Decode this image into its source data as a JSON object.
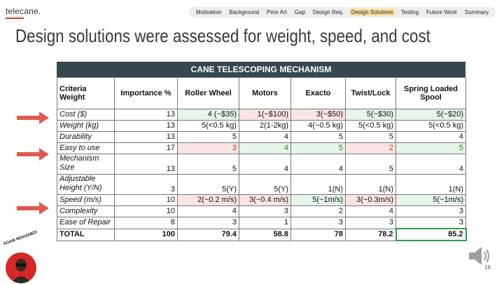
{
  "brand": "telecane.",
  "nav": [
    "Motivation",
    "Background",
    "Prior Art",
    "Gap",
    "Design Req.",
    "Design Solutions",
    "Testing",
    "Future Work",
    "Summary"
  ],
  "nav_active": 5,
  "title": "Design solutions were assessed for weight, speed, and cost",
  "table": {
    "title": "CANE TELESCOPING MECHANISM",
    "headers": [
      "Criteria Weight",
      "Importance %",
      "Roller Wheel",
      "Motors",
      "Exacto",
      "Twist/Lock",
      "Spring Loaded Spool"
    ],
    "rows": [
      [
        "Cost ($)",
        "13",
        "4 (~$35)",
        "1(~$100)",
        "3(~$50)",
        "5(~$30)",
        "5(~$20)"
      ],
      [
        "Weight (kg)",
        "13",
        "5(<0.5 kg)",
        "2(1-2kg)",
        "4(~0.5 kg)",
        "5(<0.5 kg)",
        "5(<0.5 kg)"
      ],
      [
        "Durability",
        "13",
        "5",
        "4",
        "5",
        "5",
        "4"
      ],
      [
        "Easy to use",
        "17",
        "3",
        "4",
        "5",
        "2",
        "5"
      ],
      [
        "Mechanism Size",
        "13",
        "5",
        "4",
        "4",
        "5",
        "4"
      ],
      [
        "Adjustable Height (Y/N)",
        "3",
        "5(Y)",
        "5(Y)",
        "1(N)",
        "1(N)",
        "1(N)"
      ],
      [
        "Speed (m/s)",
        "10",
        "2(~0.2 m/s)",
        "3(~0.4 m/s)",
        "5(~1m/s)",
        "3(~0.3m/s)",
        "5(~1m/s)"
      ],
      [
        "Complexity",
        "10",
        "4",
        "3",
        "2",
        "4",
        "3"
      ],
      [
        "Ease of Repair",
        "8",
        "3",
        "1",
        "3",
        "3",
        "3"
      ]
    ],
    "total": [
      "TOTAL",
      "100",
      "79.4",
      "58.8",
      "78",
      "78.2",
      "85.2"
    ]
  },
  "presenter": "ADAM MOHAMED",
  "page_number": "16",
  "colors": {
    "header_bg": "#37474f",
    "arrow": "#e05a4f",
    "good": "#e6f4ea",
    "bad": "#fce4e4",
    "best_border": "#2e9e4f",
    "avatar": "#d62828"
  }
}
